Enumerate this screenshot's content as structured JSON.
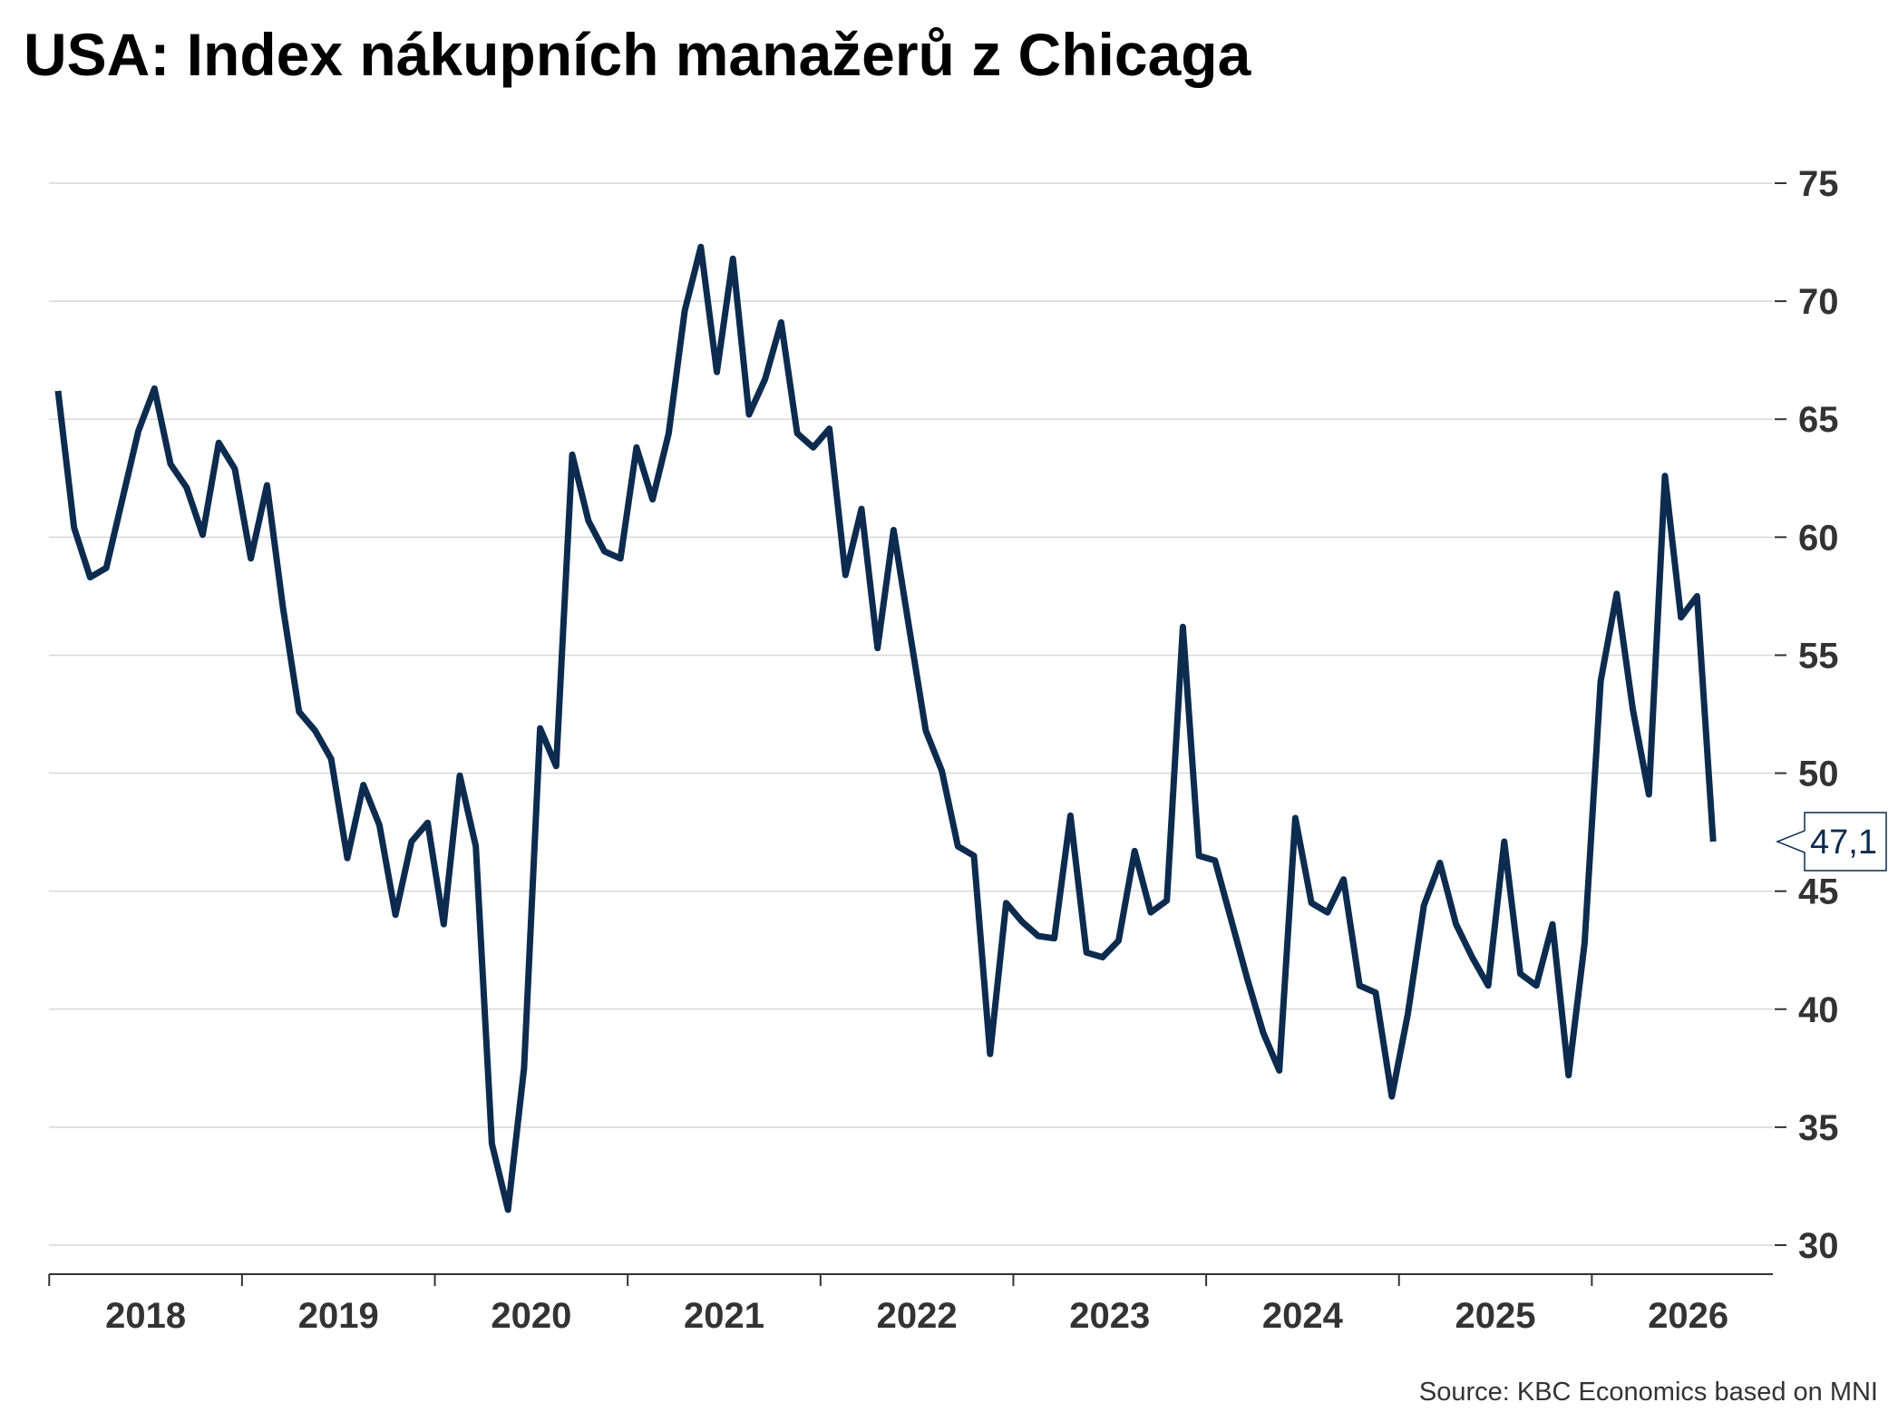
{
  "title": "USA: Index nákupních manažerů z Chicaga",
  "source": "Source: KBC Economics based on MNI",
  "colors": {
    "line": "#0c2b4e",
    "grid": "#d8d8d8",
    "axis": "#333333",
    "label_border": "#0c2b4e"
  },
  "chart_data": {
    "type": "line",
    "title": "USA: Index nákupních manažerů z Chicaga",
    "xlabel": "",
    "ylabel": "",
    "ylim": [
      30,
      75
    ],
    "yticks": [
      30,
      35,
      40,
      45,
      50,
      55,
      60,
      65,
      70,
      75
    ],
    "xticks": [
      "2018",
      "2019",
      "2020",
      "2021",
      "2022",
      "2023",
      "2024",
      "2025",
      "2026"
    ],
    "y_axis_position": "right",
    "grid": "horizontal",
    "last_value_label": "47,1",
    "x_start": "2018-01",
    "series": [
      {
        "values": [
          66.2,
          60.4,
          58.3,
          58.7,
          61.6,
          64.5,
          66.3,
          63.1,
          62.1,
          60.1,
          64.0,
          62.9,
          59.1,
          62.2,
          57.0,
          52.6,
          51.8,
          50.6,
          46.4,
          49.5,
          47.8,
          44.0,
          47.1,
          47.9,
          43.6,
          49.9,
          46.9,
          34.3,
          31.5,
          37.5,
          51.9,
          50.3,
          63.5,
          60.7,
          59.4,
          59.1,
          63.8,
          61.6,
          64.4,
          69.6,
          72.3,
          67.0,
          71.8,
          65.2,
          66.7,
          69.1,
          64.4,
          63.8,
          64.6,
          58.4,
          61.2,
          55.3,
          60.3,
          56.0,
          51.8,
          50.1,
          46.9,
          46.5,
          38.1,
          44.5,
          43.7,
          43.1,
          43.0,
          48.2,
          42.4,
          42.2,
          42.9,
          46.7,
          44.1,
          44.6,
          56.2,
          46.5,
          46.3,
          43.8,
          41.3,
          39.0,
          37.4,
          48.1,
          44.5,
          44.1,
          45.5,
          41.0,
          40.7,
          36.3,
          39.8,
          44.4,
          46.2,
          43.6,
          42.2,
          41.0,
          47.1,
          41.5,
          41.0,
          43.6,
          37.2,
          42.8,
          53.9,
          57.6,
          52.7,
          49.1,
          62.6,
          56.6,
          57.5,
          47.1
        ]
      }
    ]
  }
}
